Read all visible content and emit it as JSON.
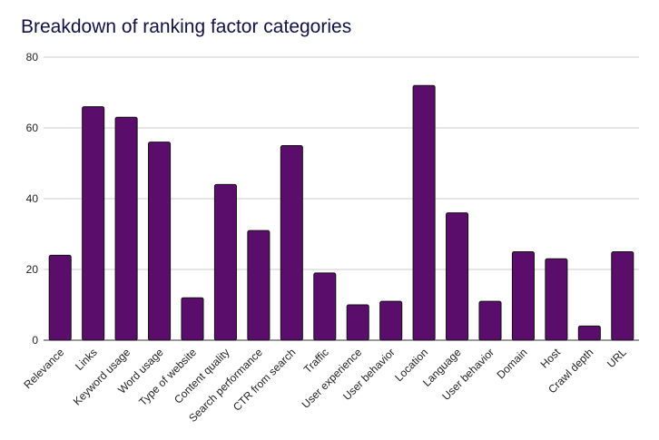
{
  "chart_data": {
    "type": "bar",
    "title": "Breakdown of ranking factor categories",
    "xlabel": "",
    "ylabel": "",
    "ylim": [
      0,
      80
    ],
    "yticks": [
      0,
      20,
      40,
      60,
      80
    ],
    "grid": true,
    "legend": "none",
    "bar_color": "#5a0d6b",
    "categories": [
      "Relevance",
      "Links",
      "Keyword usage",
      "Word usage",
      "Type of website",
      "Content quality",
      "Search performance",
      "CTR from search",
      "Traffic",
      "User experience",
      "User behavior",
      "Location",
      "Language",
      "User behavior",
      "Domain",
      "Host",
      "Crawl depth",
      "URL"
    ],
    "values": [
      24,
      66,
      63,
      56,
      12,
      44,
      31,
      55,
      19,
      10,
      11,
      72,
      36,
      11,
      25,
      23,
      4,
      25
    ]
  }
}
